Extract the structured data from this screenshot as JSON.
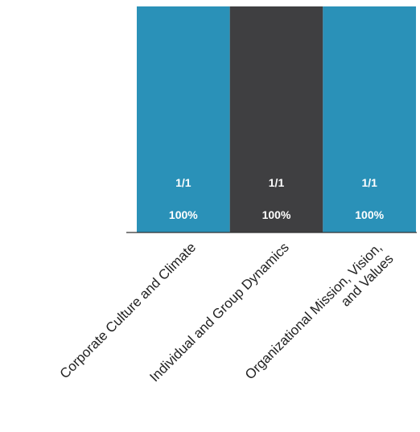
{
  "chart_data": {
    "type": "bar",
    "title": "",
    "xlabel": "",
    "ylabel": "",
    "ylim": [
      0,
      1
    ],
    "categories": [
      "Corporate Culture and Climate",
      "Individual and Group Dynamics",
      "Organizational Mission, Vision, and Values"
    ],
    "category_label_lines": [
      [
        "Corporate Culture and Climate"
      ],
      [
        "Individual and Group Dynamics"
      ],
      [
        "Organizational Mission, Vision,",
        "and Values"
      ]
    ],
    "values": [
      1,
      1,
      1
    ],
    "count_labels": [
      "1/1",
      "1/1",
      "1/1"
    ],
    "percent_labels": [
      "100%",
      "100%",
      "100%"
    ],
    "bar_colors": [
      "#2a91b8",
      "#3f3f41",
      "#2a91b8"
    ],
    "grid": false,
    "legend": "none"
  }
}
